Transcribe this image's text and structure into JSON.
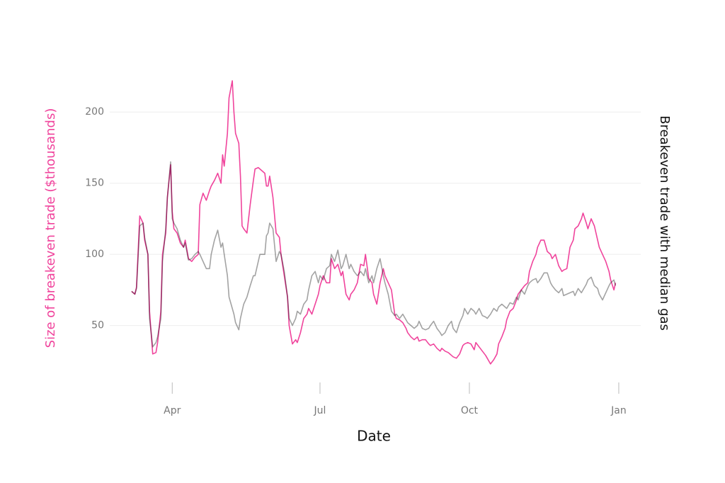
{
  "chart_data": {
    "type": "line",
    "ylabel": "Size of breakeven trade ($thousands)",
    "y2label": "Breakeven trade with median gas",
    "xlabel": "Date",
    "x": [
      65,
      67,
      68,
      70,
      72,
      73,
      75,
      76,
      78,
      80,
      81,
      83,
      84,
      86,
      87,
      89,
      90,
      91,
      93,
      95,
      97,
      98,
      100,
      102,
      104,
      106,
      107,
      109,
      111,
      113,
      114,
      116,
      118,
      120,
      121,
      122,
      124,
      125,
      127,
      128,
      129,
      131,
      132,
      133,
      134,
      136,
      138,
      140,
      141,
      143,
      144,
      147,
      148,
      149,
      150,
      152,
      154,
      156,
      157,
      159,
      161,
      162,
      164,
      166,
      167,
      169,
      171,
      173,
      174,
      176,
      178,
      180,
      181,
      183,
      185,
      187,
      188,
      190,
      192,
      194,
      195,
      197,
      199,
      200,
      202,
      204,
      206,
      208,
      209,
      211,
      213,
      214,
      216,
      218,
      220,
      221,
      223,
      225,
      227,
      228,
      230,
      232,
      234,
      235,
      237,
      239,
      241,
      242,
      244,
      246,
      248,
      249,
      251,
      253,
      255,
      256,
      258,
      260,
      262,
      263,
      265,
      267,
      269,
      270,
      272,
      274,
      276,
      277,
      279,
      281,
      283,
      284,
      286,
      288,
      290,
      291,
      293,
      295,
      296,
      298,
      300,
      302,
      303,
      305,
      307,
      309,
      310,
      312,
      314,
      315,
      317,
      319,
      321,
      323,
      324,
      326,
      328,
      330,
      331,
      333,
      335,
      337,
      338,
      340,
      342,
      343,
      345,
      346,
      348,
      350,
      352,
      353,
      355,
      357,
      359,
      360,
      362,
      363
    ],
    "series": [
      {
        "color": "#f0449c",
        "values": [
          74,
          72,
          77,
          127,
          122,
          110,
          100,
          60,
          30,
          31,
          38,
          60,
          100,
          115,
          140,
          163,
          130,
          118,
          115,
          108,
          105,
          110,
          97,
          95,
          98,
          100,
          135,
          143,
          138,
          145,
          148,
          152,
          157,
          150,
          170,
          162,
          185,
          210,
          222,
          200,
          185,
          178,
          155,
          120,
          118,
          115,
          135,
          152,
          160,
          161,
          160,
          157,
          148,
          148,
          155,
          140,
          115,
          112,
          100,
          85,
          70,
          50,
          37,
          40,
          38,
          45,
          55,
          58,
          62,
          58,
          65,
          72,
          78,
          85,
          80,
          80,
          97,
          90,
          93,
          85,
          88,
          72,
          68,
          72,
          75,
          80,
          93,
          92,
          100,
          83,
          80,
          72,
          65,
          80,
          90,
          85,
          80,
          75,
          58,
          55,
          54,
          52,
          48,
          45,
          42,
          40,
          42,
          39,
          40,
          40,
          37,
          36,
          37,
          34,
          32,
          34,
          32,
          31,
          29,
          28,
          27,
          30,
          36,
          37,
          38,
          37,
          33,
          38,
          35,
          32,
          29,
          27,
          23,
          26,
          30,
          37,
          42,
          48,
          54,
          60,
          62,
          68,
          72,
          75,
          78,
          80,
          88,
          95,
          100,
          105,
          110,
          110,
          102,
          100,
          97,
          100,
          92,
          88,
          89,
          90,
          105,
          110,
          118,
          120,
          125,
          129,
          122,
          118,
          125,
          120,
          110,
          105,
          100,
          95,
          88,
          82,
          75,
          80
        ]
      },
      {
        "color": "#a3a3a3",
        "values": [
          74,
          72,
          76,
          120,
          122,
          112,
          100,
          55,
          35,
          38,
          42,
          55,
          95,
          118,
          140,
          165,
          125,
          122,
          118,
          110,
          105,
          108,
          96,
          97,
          100,
          102,
          100,
          95,
          90,
          90,
          100,
          110,
          117,
          105,
          108,
          100,
          85,
          70,
          62,
          58,
          52,
          47,
          55,
          60,
          65,
          70,
          78,
          85,
          85,
          95,
          100,
          100,
          113,
          115,
          122,
          118,
          95,
          102,
          100,
          88,
          70,
          55,
          50,
          55,
          60,
          58,
          65,
          68,
          75,
          85,
          88,
          80,
          85,
          82,
          90,
          92,
          100,
          95,
          103,
          90,
          92,
          100,
          90,
          93,
          88,
          85,
          88,
          85,
          90,
          80,
          85,
          80,
          90,
          97,
          85,
          80,
          72,
          60,
          57,
          58,
          55,
          58,
          54,
          52,
          50,
          48,
          50,
          53,
          48,
          47,
          48,
          50,
          53,
          48,
          45,
          43,
          45,
          50,
          53,
          48,
          45,
          52,
          57,
          62,
          58,
          62,
          60,
          58,
          62,
          57,
          56,
          55,
          58,
          62,
          60,
          63,
          65,
          63,
          62,
          66,
          65,
          70,
          68,
          75,
          72,
          78,
          80,
          82,
          83,
          80,
          83,
          87,
          87,
          80,
          78,
          75,
          73,
          76,
          71,
          72,
          73,
          74,
          71,
          76,
          73,
          75,
          79,
          82,
          84,
          78,
          76,
          72,
          68,
          73,
          78,
          80,
          82,
          78
        ]
      }
    ],
    "xlim": [
      55,
      372
    ],
    "xticks": [
      {
        "value": 90,
        "label": "Apr"
      },
      {
        "value": 181,
        "label": "Jul"
      },
      {
        "value": 273,
        "label": "Oct"
      },
      {
        "value": 365,
        "label": "Jan"
      }
    ],
    "ylim": [
      10,
      225
    ],
    "yticks": [
      50,
      100,
      150,
      200
    ],
    "grid": true
  }
}
